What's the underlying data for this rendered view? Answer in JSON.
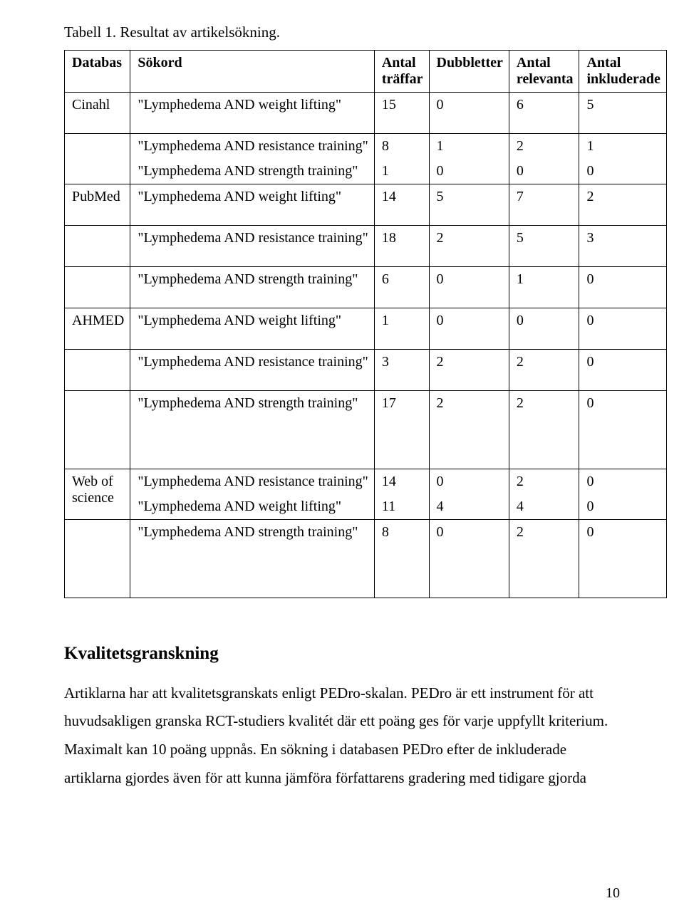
{
  "caption": "Tabell 1. Resultat av artikelsökning.",
  "headers": {
    "c1": "Databas",
    "c2": "Sökord",
    "c3a": "Antal",
    "c3b": "träffar",
    "c4": "Dubbletter",
    "c5a": "Antal",
    "c5b": "relevanta",
    "c6a": "Antal",
    "c6b": "inkluderade"
  },
  "rows": [
    {
      "db": "Cinahl",
      "sok": "\"Lymphedema AND weight lifting\"",
      "v": [
        "15",
        "0",
        "6",
        "5"
      ],
      "tall": true
    },
    {
      "db": "",
      "multi": true,
      "sok_lines": [
        "\"Lymphedema AND resistance training\"",
        "\"Lymphedema AND strength training\""
      ],
      "v1_lines": [
        "8",
        "1"
      ],
      "v2_lines": [
        "1",
        "0"
      ],
      "v3_lines": [
        "2",
        "0"
      ],
      "v4_lines": [
        "1",
        "0"
      ]
    },
    {
      "db": "PubMed",
      "sok": "\"Lymphedema AND weight lifting\"",
      "v": [
        "14",
        "5",
        "7",
        "2"
      ],
      "tall": true
    },
    {
      "db": "",
      "sok": "\"Lymphedema AND resistance training\"",
      "v": [
        "18",
        "2",
        "5",
        "3"
      ],
      "tall": true
    },
    {
      "db": "",
      "sok": "\"Lymphedema AND strength training\"",
      "v": [
        "6",
        "0",
        "1",
        "0"
      ],
      "tall": true
    },
    {
      "db": "AHMED",
      "sok": "\"Lymphedema AND weight lifting\"",
      "v": [
        "1",
        "0",
        "0",
        "0"
      ],
      "tall": true
    },
    {
      "db": "",
      "sok": "\"Lymphedema AND resistance training\"",
      "v": [
        "3",
        "2",
        "2",
        "0"
      ],
      "tall": true
    },
    {
      "db": "",
      "sok": "\"Lymphedema AND strength training\"",
      "v": [
        "17",
        "2",
        "2",
        "0"
      ],
      "big_bottom": true
    },
    {
      "db": "Web of\nscience",
      "multi": true,
      "sok_lines": [
        "\"Lymphedema AND resistance training\"",
        "\"Lymphedema AND weight lifting\""
      ],
      "v1_lines": [
        "14",
        "11"
      ],
      "v2_lines": [
        "0",
        "4"
      ],
      "v3_lines": [
        "2",
        "4"
      ],
      "v4_lines": [
        "0",
        "0"
      ]
    },
    {
      "db": "",
      "sok": "\"Lymphedema AND strength training\"",
      "v": [
        "8",
        "0",
        "2",
        "0"
      ],
      "big_bottom": true
    }
  ],
  "section_heading": "Kvalitetsgranskning",
  "body_text": "Artiklarna har att kvalitetsgranskats enligt PEDro-skalan. PEDro är ett instrument för att huvudsakligen granska RCT-studiers kvalitét där ett poäng ges för varje uppfyllt kriterium. Maximalt kan 10 poäng uppnås. En sökning i databasen PEDro efter de inkluderade artiklarna gjordes även för att kunna jämföra författarens gradering med tidigare gjorda",
  "page_number": "10"
}
